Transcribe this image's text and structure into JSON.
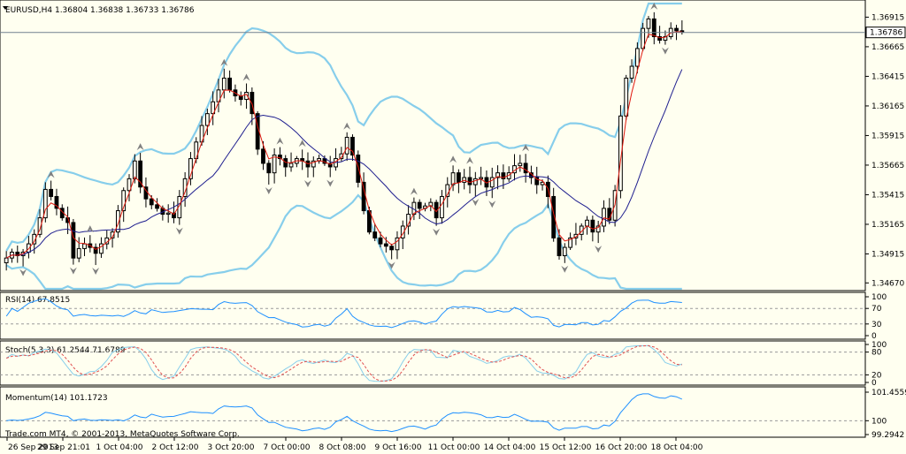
{
  "chart_data": {
    "type": "candlestick",
    "symbol_line": "EURUSD,H4  1.36804 1.36838 1.36733 1.36786",
    "price_axis_ticks": [
      "1.36915",
      "1.36665",
      "1.36415",
      "1.36165",
      "1.35915",
      "1.35665",
      "1.35415",
      "1.35165",
      "1.34915",
      "1.34670"
    ],
    "price_range": [
      1.3462,
      1.3703
    ],
    "current_price": "1.36786",
    "current_price_value": 1.36786,
    "time_labels": [
      "26 Sep 2013",
      "29 Sep 21:01",
      "1 Oct 04:00",
      "2 Oct 12:00",
      "3 Oct 20:00",
      "7 Oct 00:00",
      "8 Oct 08:00",
      "9 Oct 16:00",
      "11 Oct 00:00",
      "14 Oct 04:00",
      "15 Oct 12:00",
      "16 Oct 20:00",
      "18 Oct 04:00"
    ],
    "closes": [
      1.3488,
      1.3493,
      1.349,
      1.3493,
      1.35,
      1.3508,
      1.3522,
      1.3546,
      1.354,
      1.353,
      1.3522,
      1.3518,
      1.3488,
      1.3496,
      1.35,
      1.3497,
      1.3492,
      1.35,
      1.3505,
      1.351,
      1.3528,
      1.3545,
      1.3555,
      1.357,
      1.3548,
      1.3538,
      1.3533,
      1.353,
      1.3525,
      1.3526,
      1.3522,
      1.354,
      1.3555,
      1.3572,
      1.3586,
      1.36,
      1.361,
      1.362,
      1.363,
      1.364,
      1.363,
      1.3625,
      1.3622,
      1.3628,
      1.361,
      1.358,
      1.3568,
      1.356,
      1.3575,
      1.3572,
      1.3565,
      1.3568,
      1.3572,
      1.357,
      1.3565,
      1.357,
      1.3572,
      1.3568,
      1.3565,
      1.3572,
      1.3576,
      1.359,
      1.3575,
      1.3552,
      1.3528,
      1.351,
      1.3505,
      1.35,
      1.3498,
      1.3495,
      1.3505,
      1.3515,
      1.3525,
      1.3535,
      1.353,
      1.3532,
      1.3535,
      1.3522,
      1.354,
      1.355,
      1.356,
      1.3552,
      1.3556,
      1.355,
      1.3555,
      1.3556,
      1.3548,
      1.3556,
      1.356,
      1.3555,
      1.356,
      1.3566,
      1.3568,
      1.356,
      1.3556,
      1.355,
      1.3552,
      1.354,
      1.3505,
      1.349,
      1.3497,
      1.3505,
      1.3508,
      1.3515,
      1.352,
      1.351,
      1.3515,
      1.353,
      1.352,
      1.3545,
      1.3608,
      1.364,
      1.365,
      1.3665,
      1.3682,
      1.369,
      1.3675,
      1.3672,
      1.3675,
      1.3682,
      1.368,
      1.3679
    ],
    "ohlc_note": "values estimated from the chart",
    "panes": [
      {
        "title": "RSI(14) 67.8515",
        "ticks": [
          "100",
          "70",
          "30",
          "0"
        ]
      },
      {
        "title": "Stoch(5,3,3) 61.2544 71.6789",
        "ticks": [
          "100",
          "80",
          "20",
          "0"
        ]
      },
      {
        "title": "Momentum(14) 101.1723",
        "ticks": [
          "101.4559",
          "100",
          "99.2942"
        ]
      }
    ],
    "copyright": "Trade.com MT4, © 2001-2013, MetaQuotes Software Corp.",
    "colors": {
      "background": "#fffff0",
      "bollinger": "#87ceeb",
      "ma_fast": "#e0180f",
      "ma_slow": "#1f1f8f",
      "indicator_line": "#1e90ff",
      "signal_line": "#e05050",
      "level_dash": "#9a9a9a"
    }
  }
}
